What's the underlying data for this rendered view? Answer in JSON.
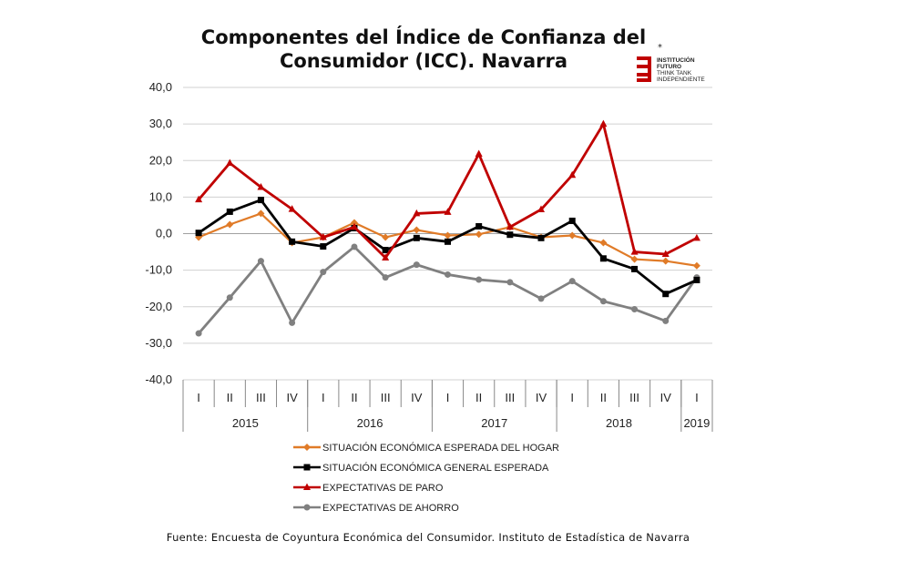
{
  "title_line1": "Componentes del Índice de Confianza del",
  "title_line2": "Consumidor (ICC). Navarra",
  "logo": {
    "lines": [
      "INSTITUCIÓN",
      "FUTURO",
      "THINK TANK",
      "INDEPENDIENTE"
    ],
    "color": "#c00000"
  },
  "source": "Fuente: Encuesta de Coyuntura Económica del Consumidor. Instituto de Estadística de Navarra",
  "chart_data": {
    "type": "line",
    "ylim": [
      -40,
      40
    ],
    "yticks": [
      40,
      30,
      20,
      10,
      0,
      -10,
      -20,
      -30,
      -40
    ],
    "ytick_labels": [
      "40,0",
      "30,0",
      "20,0",
      "10,0",
      "0,0",
      "-10,0",
      "-20,0",
      "-30,0",
      "-40,0"
    ],
    "quarters": [
      "I",
      "II",
      "III",
      "IV",
      "I",
      "II",
      "III",
      "IV",
      "I",
      "II",
      "III",
      "IV",
      "I",
      "II",
      "III",
      "IV",
      "I"
    ],
    "years": [
      {
        "label": "2015",
        "count": 4
      },
      {
        "label": "2016",
        "count": 4
      },
      {
        "label": "2017",
        "count": 4
      },
      {
        "label": "2018",
        "count": 4
      },
      {
        "label": "2019",
        "count": 1
      }
    ],
    "series": [
      {
        "name": "SITUACIÓN ECONÓMICA ESPERADA DEL HOGAR",
        "color": "#e07b28",
        "marker": "diamond",
        "values": [
          -1.0,
          2.5,
          5.5,
          -2.5,
          -1.0,
          3.0,
          -1.0,
          1.0,
          -0.5,
          -0.2,
          1.8,
          -1.0,
          -0.5,
          -2.5,
          -7.0,
          -7.5,
          -8.8
        ]
      },
      {
        "name": "SITUACIÓN ECONÓMICA GENERAL ESPERADA",
        "color": "#000000",
        "marker": "square",
        "values": [
          0.2,
          6.0,
          9.2,
          -2.2,
          -3.5,
          1.5,
          -4.5,
          -1.2,
          -2.2,
          2.0,
          -0.3,
          -1.2,
          3.5,
          -6.8,
          -9.7,
          -16.5,
          -12.7
        ]
      },
      {
        "name": "EXPECTATIVAS DE PARO",
        "color": "#c00000",
        "marker": "triangle",
        "values": [
          9.3,
          19.3,
          12.7,
          6.7,
          -1.0,
          1.8,
          -6.6,
          5.5,
          5.9,
          21.8,
          1.8,
          6.6,
          16.0,
          30.0,
          -5.0,
          -5.6,
          -1.2
        ]
      },
      {
        "name": "EXPECTATIVAS DE AHORRO",
        "color": "#808080",
        "marker": "circle",
        "values": [
          -27.3,
          -17.5,
          -7.5,
          -24.4,
          -10.5,
          -3.6,
          -12.0,
          -8.5,
          -11.2,
          -12.6,
          -13.3,
          -17.8,
          -13.0,
          -18.5,
          -20.7,
          -23.9,
          -12.0
        ]
      }
    ]
  }
}
